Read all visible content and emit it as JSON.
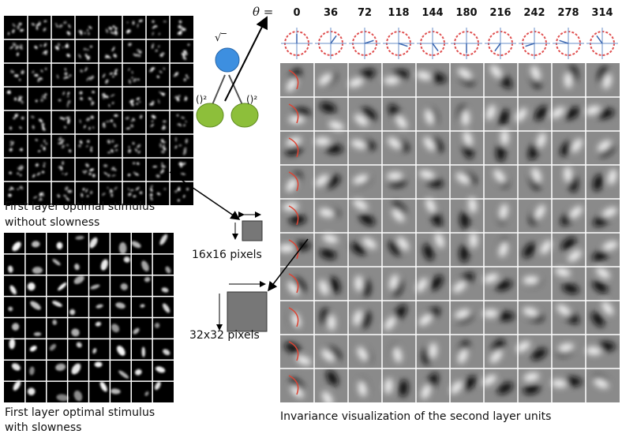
{
  "figure": {
    "theta_label": "θ =",
    "theta_values": [
      0,
      36,
      72,
      118,
      144,
      180,
      216,
      242,
      278,
      314
    ],
    "top_caption": [
      "First layer optimal stimulus",
      "without slowness"
    ],
    "bottom_caption": [
      "First layer optimal stimulus",
      "with slowness"
    ],
    "small_patch_label": "16x16 pixels",
    "large_patch_label": "32x32 pixels",
    "right_caption": "Invariance visualization of the second layer units",
    "node_top_label": "√‾",
    "node_left_label": "()²",
    "node_right_label": "()²"
  }
}
